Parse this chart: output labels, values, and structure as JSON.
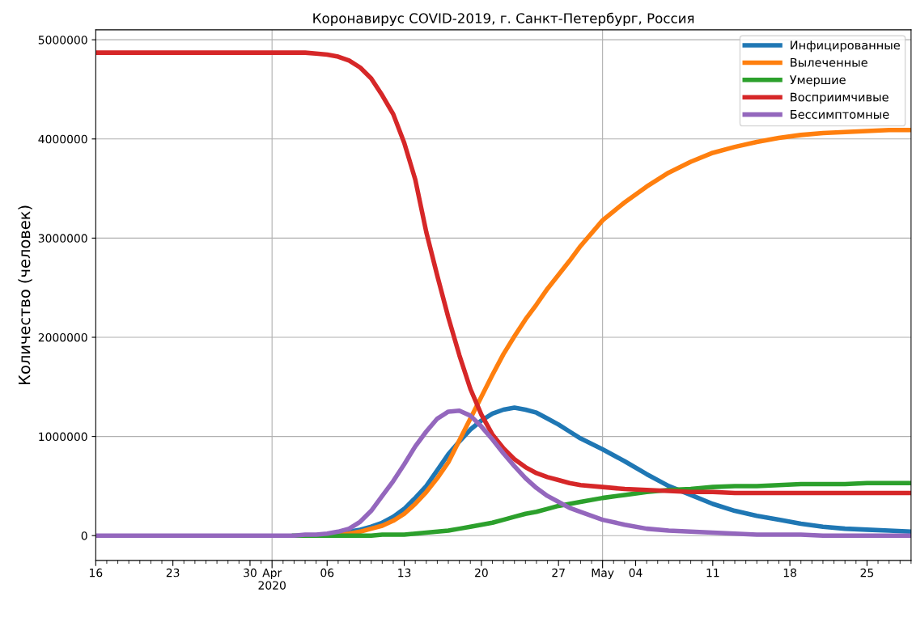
{
  "chart_data": {
    "type": "line",
    "title": "Коронавирус COVID-2019, г. Санкт-Петербург, Россия",
    "ylabel": "Количество (человек)",
    "x": [
      "2020-03-16",
      "2020-03-26",
      "2020-04-01",
      "2020-04-03",
      "2020-04-04",
      "2020-04-05",
      "2020-04-06",
      "2020-04-07",
      "2020-04-08",
      "2020-04-09",
      "2020-04-10",
      "2020-04-11",
      "2020-04-12",
      "2020-04-13",
      "2020-04-14",
      "2020-04-15",
      "2020-04-16",
      "2020-04-17",
      "2020-04-18",
      "2020-04-19",
      "2020-04-20",
      "2020-04-21",
      "2020-04-22",
      "2020-04-23",
      "2020-04-24",
      "2020-04-25",
      "2020-04-26",
      "2020-04-27",
      "2020-04-28",
      "2020-04-29",
      "2020-05-01",
      "2020-05-03",
      "2020-05-05",
      "2020-05-07",
      "2020-05-09",
      "2020-05-11",
      "2020-05-13",
      "2020-05-15",
      "2020-05-17",
      "2020-05-19",
      "2020-05-21",
      "2020-05-23",
      "2020-05-25",
      "2020-05-27",
      "2020-05-29"
    ],
    "series": [
      {
        "name": "Инфицированные",
        "color": "#1f77b4",
        "values": [
          null,
          null,
          null,
          null,
          null,
          null,
          null,
          20000,
          40000,
          60000,
          90000,
          130000,
          190000,
          270000,
          380000,
          500000,
          660000,
          820000,
          950000,
          1070000,
          1160000,
          1230000,
          1270000,
          1290000,
          1270000,
          1240000,
          1180000,
          1120000,
          1050000,
          980000,
          870000,
          750000,
          620000,
          500000,
          410000,
          320000,
          250000,
          200000,
          160000,
          120000,
          90000,
          70000,
          60000,
          50000,
          40000
        ]
      },
      {
        "name": "Вылеченные",
        "color": "#ff7f0e",
        "values": [
          null,
          null,
          null,
          null,
          null,
          null,
          null,
          10000,
          20000,
          40000,
          70000,
          100000,
          150000,
          220000,
          320000,
          440000,
          580000,
          740000,
          960000,
          1180000,
          1400000,
          1620000,
          1830000,
          2010000,
          2180000,
          2330000,
          2490000,
          2630000,
          2770000,
          2920000,
          3180000,
          3360000,
          3520000,
          3660000,
          3770000,
          3860000,
          3920000,
          3970000,
          4010000,
          4040000,
          4060000,
          4070000,
          4080000,
          4090000,
          4090000
        ]
      },
      {
        "name": "Умершие",
        "color": "#2ca02c",
        "values": [
          null,
          null,
          null,
          0,
          0,
          0,
          0,
          0,
          0,
          0,
          0,
          10000,
          10000,
          10000,
          20000,
          30000,
          40000,
          50000,
          70000,
          90000,
          110000,
          130000,
          160000,
          190000,
          220000,
          240000,
          270000,
          300000,
          320000,
          340000,
          380000,
          410000,
          440000,
          460000,
          470000,
          490000,
          500000,
          500000,
          510000,
          520000,
          520000,
          520000,
          530000,
          530000,
          530000
        ]
      },
      {
        "name": "Восприимчивые",
        "color": "#d62728",
        "values": [
          4870000,
          4870000,
          4870000,
          4870000,
          4870000,
          4860000,
          4850000,
          4830000,
          4790000,
          4720000,
          4610000,
          4440000,
          4250000,
          3960000,
          3590000,
          3060000,
          2620000,
          2200000,
          1820000,
          1480000,
          1220000,
          1020000,
          880000,
          770000,
          690000,
          630000,
          590000,
          560000,
          530000,
          510000,
          490000,
          470000,
          460000,
          450000,
          440000,
          440000,
          430000,
          430000,
          430000,
          430000,
          430000,
          430000,
          430000,
          430000,
          430000
        ]
      },
      {
        "name": "Бессимптомные",
        "color": "#9467bd",
        "values": [
          0,
          0,
          0,
          0,
          10000,
          10000,
          20000,
          40000,
          70000,
          140000,
          250000,
          400000,
          550000,
          720000,
          900000,
          1050000,
          1180000,
          1250000,
          1260000,
          1210000,
          1100000,
          970000,
          830000,
          700000,
          580000,
          480000,
          400000,
          340000,
          280000,
          240000,
          160000,
          110000,
          70000,
          50000,
          40000,
          30000,
          20000,
          10000,
          10000,
          10000,
          0,
          0,
          0,
          0,
          0
        ]
      }
    ],
    "xlim": [
      "2020-03-16",
      "2020-05-29"
    ],
    "xticks": [
      {
        "value": "2020-03-16",
        "label": "16"
      },
      {
        "value": "2020-03-23",
        "label": "23"
      },
      {
        "value": "2020-03-30",
        "label": "30"
      },
      {
        "value": "2020-04-01",
        "label": "Apr\n2020"
      },
      {
        "value": "2020-04-06",
        "label": "06"
      },
      {
        "value": "2020-04-13",
        "label": "13"
      },
      {
        "value": "2020-04-20",
        "label": "20"
      },
      {
        "value": "2020-04-27",
        "label": "27"
      },
      {
        "value": "2020-05-01",
        "label": "May"
      },
      {
        "value": "2020-05-04",
        "label": "04"
      },
      {
        "value": "2020-05-11",
        "label": "11"
      },
      {
        "value": "2020-05-18",
        "label": "18"
      },
      {
        "value": "2020-05-25",
        "label": "25"
      }
    ],
    "ylim": [
      -250000,
      5100000
    ],
    "yticks": [
      0,
      1000000,
      2000000,
      3000000,
      4000000,
      5000000
    ],
    "grid": true,
    "legend": "top right",
    "line_style": "solid",
    "marker": "none"
  }
}
